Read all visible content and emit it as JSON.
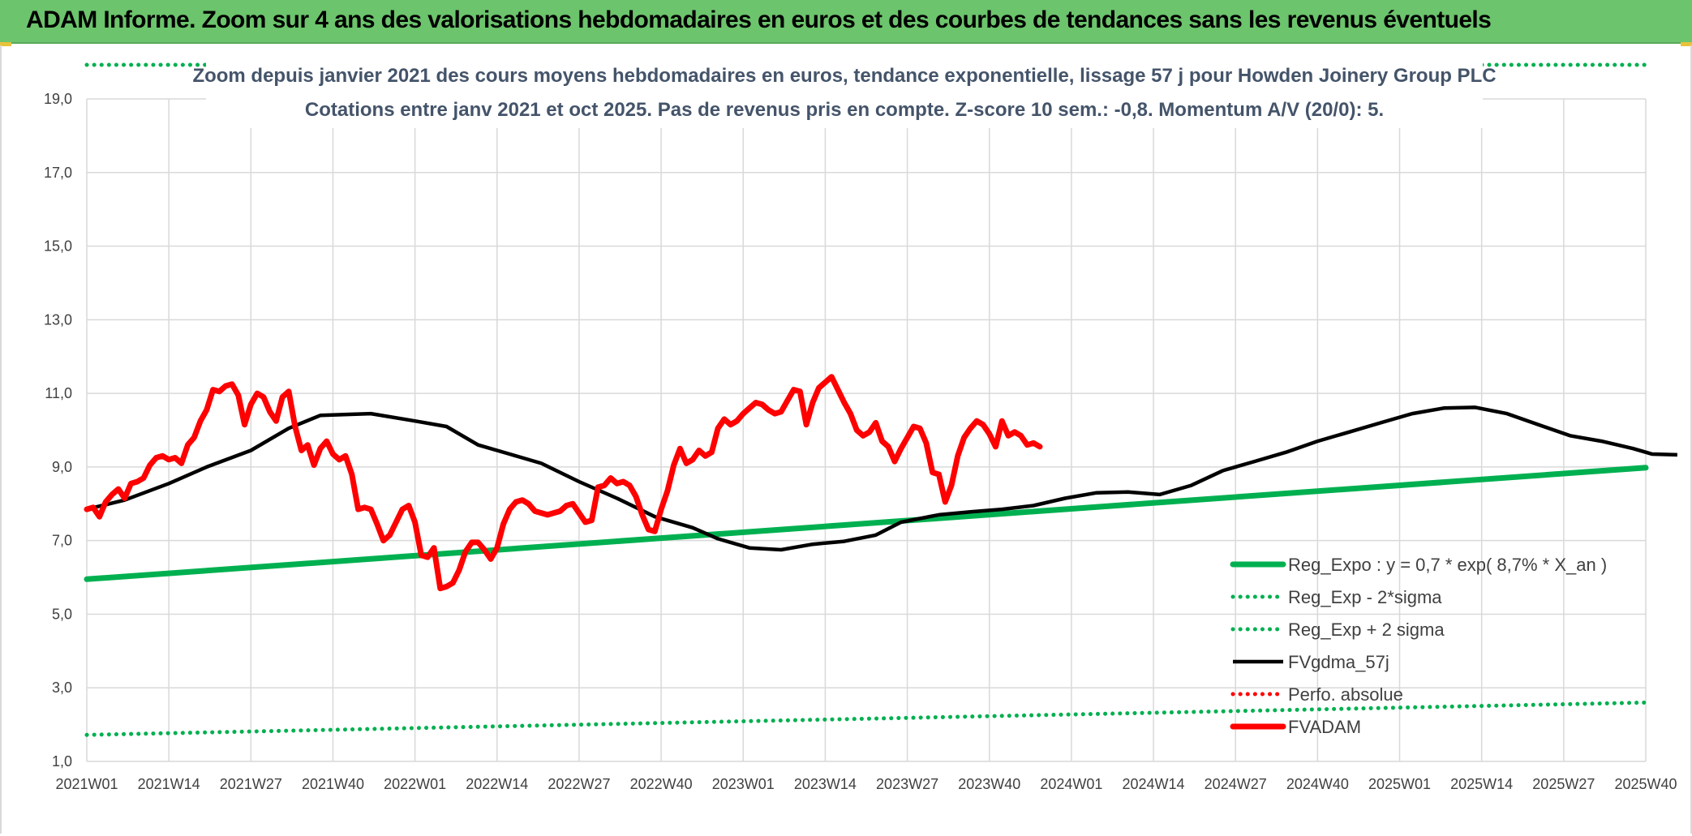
{
  "header": {
    "title": "ADAM Informe. Zoom sur 4 ans des valorisations hebdomadaires en euros et des courbes de tendances sans les revenus éventuels"
  },
  "chart_data": {
    "type": "line",
    "subtitle_line1": "Zoom depuis janvier 2021 des cours moyens hebdomadaires en euros, tendance exponentielle, lissage 57 j pour Howden Joinery Group PLC",
    "subtitle_line2": "Cotations entre janv 2021 et oct 2025. Pas de revenus pris en compte. Z-score 10 sem.: -0,8. Momentum A/V (20/0): 5.",
    "ylim": [
      1,
      19
    ],
    "yticks": [
      "1,0",
      "3,0",
      "5,0",
      "7,0",
      "9,0",
      "11,0",
      "13,0",
      "15,0",
      "17,0",
      "19,0"
    ],
    "x_ticks": [
      "2021W01",
      "2021W14",
      "2021W27",
      "2021W40",
      "2022W01",
      "2022W14",
      "2022W27",
      "2022W40",
      "2023W01",
      "2023W14",
      "2023W27",
      "2023W40",
      "2024W01",
      "2024W14",
      "2024W27",
      "2024W40",
      "2025W01",
      "2025W14",
      "2025W27",
      "2025W40"
    ],
    "x_week_range": [
      0,
      247
    ],
    "grid": true,
    "legend_position": "bottom-right",
    "series": [
      {
        "name": "Reg_Expo : y = 0,7 * exp( 8,7% *  X_an )",
        "color": "#00b050",
        "style": "solid-thick",
        "points": [
          [
            0,
            5.95
          ],
          [
            247,
            8.98
          ]
        ]
      },
      {
        "name": "Reg_Exp - 2*sigma",
        "color": "#00b050",
        "style": "dotted",
        "points": [
          [
            0,
            1.72
          ],
          [
            247,
            2.6
          ]
        ]
      },
      {
        "name": "Reg_Exp + 2 sigma",
        "color": "#00b050",
        "style": "dotted",
        "points": [
          [
            0,
            20.0
          ],
          [
            247,
            20.0
          ]
        ]
      },
      {
        "name": "FVgdma_57j",
        "color": "#000000",
        "style": "solid",
        "points": [
          [
            0,
            7.85
          ],
          [
            6,
            8.1
          ],
          [
            13,
            8.55
          ],
          [
            19,
            9.0
          ],
          [
            26,
            9.45
          ],
          [
            32,
            10.05
          ],
          [
            37,
            10.4
          ],
          [
            45,
            10.45
          ],
          [
            52,
            10.25
          ],
          [
            57,
            10.1
          ],
          [
            62,
            9.6
          ],
          [
            67,
            9.35
          ],
          [
            72,
            9.1
          ],
          [
            78,
            8.6
          ],
          [
            84,
            8.15
          ],
          [
            90,
            7.65
          ],
          [
            96,
            7.35
          ],
          [
            100,
            7.05
          ],
          [
            105,
            6.8
          ],
          [
            110,
            6.75
          ],
          [
            115,
            6.9
          ],
          [
            120,
            6.98
          ],
          [
            125,
            7.15
          ],
          [
            129,
            7.5
          ],
          [
            135,
            7.7
          ],
          [
            140,
            7.78
          ],
          [
            145,
            7.85
          ],
          [
            150,
            7.95
          ],
          [
            155,
            8.15
          ],
          [
            160,
            8.3
          ],
          [
            165,
            8.32
          ],
          [
            170,
            8.25
          ],
          [
            175,
            8.5
          ],
          [
            180,
            8.9
          ],
          [
            185,
            9.15
          ],
          [
            190,
            9.4
          ],
          [
            195,
            9.7
          ],
          [
            200,
            9.95
          ],
          [
            205,
            10.2
          ],
          [
            210,
            10.45
          ],
          [
            215,
            10.6
          ],
          [
            220,
            10.62
          ],
          [
            225,
            10.45
          ],
          [
            230,
            10.15
          ],
          [
            235,
            9.85
          ],
          [
            240,
            9.7
          ],
          [
            245,
            9.5
          ],
          [
            248,
            9.35
          ],
          [
            252,
            9.33
          ]
        ]
      },
      {
        "name": "Perfo. absolue",
        "color": "#ff0000",
        "style": "dotted",
        "points": []
      },
      {
        "name": "FVADAM",
        "color": "#ff0000",
        "style": "solid-thick",
        "points": [
          [
            0,
            7.85
          ],
          [
            1,
            7.9
          ],
          [
            2,
            7.65
          ],
          [
            3,
            8.05
          ],
          [
            4,
            8.25
          ],
          [
            5,
            8.4
          ],
          [
            6,
            8.15
          ],
          [
            7,
            8.55
          ],
          [
            8,
            8.6
          ],
          [
            9,
            8.7
          ],
          [
            10,
            9.05
          ],
          [
            11,
            9.25
          ],
          [
            12,
            9.3
          ],
          [
            13,
            9.2
          ],
          [
            14,
            9.25
          ],
          [
            15,
            9.1
          ],
          [
            16,
            9.6
          ],
          [
            17,
            9.8
          ],
          [
            18,
            10.25
          ],
          [
            19,
            10.55
          ],
          [
            20,
            11.1
          ],
          [
            21,
            11.05
          ],
          [
            22,
            11.2
          ],
          [
            23,
            11.25
          ],
          [
            24,
            10.95
          ],
          [
            25,
            10.15
          ],
          [
            26,
            10.7
          ],
          [
            27,
            11.0
          ],
          [
            28,
            10.9
          ],
          [
            29,
            10.5
          ],
          [
            30,
            10.25
          ],
          [
            31,
            10.9
          ],
          [
            32,
            11.05
          ],
          [
            33,
            10.1
          ],
          [
            34,
            9.45
          ],
          [
            35,
            9.6
          ],
          [
            36,
            9.05
          ],
          [
            37,
            9.5
          ],
          [
            38,
            9.7
          ],
          [
            39,
            9.35
          ],
          [
            40,
            9.2
          ],
          [
            41,
            9.3
          ],
          [
            42,
            8.8
          ],
          [
            43,
            7.85
          ],
          [
            44,
            7.9
          ],
          [
            45,
            7.85
          ],
          [
            46,
            7.45
          ],
          [
            47,
            7.0
          ],
          [
            48,
            7.15
          ],
          [
            49,
            7.5
          ],
          [
            50,
            7.85
          ],
          [
            51,
            7.95
          ],
          [
            52,
            7.5
          ],
          [
            53,
            6.6
          ],
          [
            54,
            6.55
          ],
          [
            55,
            6.8
          ],
          [
            56,
            5.7
          ],
          [
            57,
            5.75
          ],
          [
            58,
            5.85
          ],
          [
            59,
            6.2
          ],
          [
            60,
            6.7
          ],
          [
            61,
            6.95
          ],
          [
            62,
            6.95
          ],
          [
            63,
            6.75
          ],
          [
            64,
            6.5
          ],
          [
            65,
            6.8
          ],
          [
            66,
            7.45
          ],
          [
            67,
            7.85
          ],
          [
            68,
            8.05
          ],
          [
            69,
            8.1
          ],
          [
            70,
            8.0
          ],
          [
            71,
            7.8
          ],
          [
            72,
            7.75
          ],
          [
            73,
            7.7
          ],
          [
            74,
            7.75
          ],
          [
            75,
            7.8
          ],
          [
            76,
            7.95
          ],
          [
            77,
            8.0
          ],
          [
            78,
            7.75
          ],
          [
            79,
            7.5
          ],
          [
            80,
            7.55
          ],
          [
            81,
            8.45
          ],
          [
            82,
            8.5
          ],
          [
            83,
            8.7
          ],
          [
            84,
            8.55
          ],
          [
            85,
            8.6
          ],
          [
            86,
            8.5
          ],
          [
            87,
            8.2
          ],
          [
            88,
            7.7
          ],
          [
            89,
            7.3
          ],
          [
            90,
            7.25
          ],
          [
            91,
            7.85
          ],
          [
            92,
            8.35
          ],
          [
            93,
            9.05
          ],
          [
            94,
            9.5
          ],
          [
            95,
            9.1
          ],
          [
            96,
            9.2
          ],
          [
            97,
            9.45
          ],
          [
            98,
            9.3
          ],
          [
            99,
            9.4
          ],
          [
            100,
            10.05
          ],
          [
            101,
            10.3
          ],
          [
            102,
            10.15
          ],
          [
            103,
            10.25
          ],
          [
            104,
            10.45
          ],
          [
            105,
            10.6
          ],
          [
            106,
            10.75
          ],
          [
            107,
            10.7
          ],
          [
            108,
            10.55
          ],
          [
            109,
            10.45
          ],
          [
            110,
            10.5
          ],
          [
            111,
            10.8
          ],
          [
            112,
            11.1
          ],
          [
            113,
            11.05
          ],
          [
            114,
            10.15
          ],
          [
            115,
            10.75
          ],
          [
            116,
            11.15
          ],
          [
            117,
            11.3
          ],
          [
            118,
            11.45
          ],
          [
            119,
            11.1
          ],
          [
            120,
            10.75
          ],
          [
            121,
            10.45
          ],
          [
            122,
            10.0
          ],
          [
            123,
            9.85
          ],
          [
            124,
            9.95
          ],
          [
            125,
            10.2
          ],
          [
            126,
            9.7
          ],
          [
            127,
            9.55
          ],
          [
            128,
            9.15
          ],
          [
            129,
            9.5
          ],
          [
            130,
            9.8
          ],
          [
            131,
            10.1
          ],
          [
            132,
            10.05
          ],
          [
            133,
            9.65
          ],
          [
            134,
            8.85
          ],
          [
            135,
            8.8
          ],
          [
            136,
            8.05
          ],
          [
            137,
            8.5
          ],
          [
            138,
            9.3
          ],
          [
            139,
            9.8
          ],
          [
            140,
            10.05
          ],
          [
            141,
            10.25
          ],
          [
            142,
            10.15
          ],
          [
            143,
            9.9
          ],
          [
            144,
            9.55
          ],
          [
            145,
            10.25
          ],
          [
            146,
            9.85
          ],
          [
            147,
            9.95
          ],
          [
            148,
            9.85
          ],
          [
            149,
            9.6
          ],
          [
            150,
            9.65
          ],
          [
            151,
            9.55
          ]
        ]
      }
    ]
  }
}
